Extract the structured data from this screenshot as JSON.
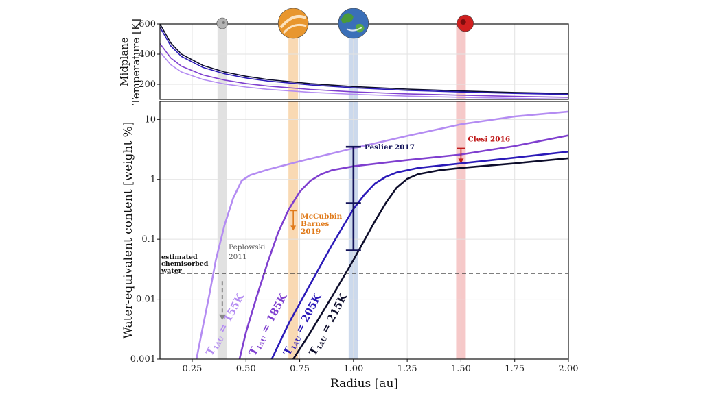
{
  "chart_data": [
    {
      "type": "line",
      "panel": "top",
      "ylabel_line1": "Midplane",
      "ylabel_line2": "Temperature [K]",
      "xlim": [
        0.1,
        2.0
      ],
      "ylim": [
        100,
        600
      ],
      "yscale": "linear",
      "yticks": [
        "200",
        "400",
        "600"
      ],
      "grid": true,
      "series": [
        {
          "color": "#0d0d2b",
          "points": [
            [
              0.1,
              600
            ],
            [
              0.15,
              475
            ],
            [
              0.2,
              400
            ],
            [
              0.3,
              325
            ],
            [
              0.4,
              282
            ],
            [
              0.5,
              253
            ],
            [
              0.6,
              232
            ],
            [
              0.8,
              204
            ],
            [
              1.0,
              185
            ],
            [
              1.25,
              168
            ],
            [
              1.5,
              156
            ],
            [
              1.75,
              146
            ],
            [
              2.0,
              139
            ]
          ]
        },
        {
          "color": "#2b1ab8",
          "points": [
            [
              0.1,
              578
            ],
            [
              0.15,
              455
            ],
            [
              0.2,
              385
            ],
            [
              0.3,
              312
            ],
            [
              0.4,
              270
            ],
            [
              0.5,
              242
            ],
            [
              0.6,
              222
            ],
            [
              0.8,
              196
            ],
            [
              1.0,
              177
            ],
            [
              1.25,
              160
            ],
            [
              1.5,
              149
            ],
            [
              1.75,
              140
            ],
            [
              2.0,
              133
            ]
          ]
        },
        {
          "color": "#7f3fcf",
          "points": [
            [
              0.1,
              470
            ],
            [
              0.15,
              375
            ],
            [
              0.2,
              320
            ],
            [
              0.3,
              262
            ],
            [
              0.4,
              228
            ],
            [
              0.5,
              205
            ],
            [
              0.6,
              188
            ],
            [
              0.8,
              166
            ],
            [
              1.0,
              150
            ],
            [
              1.25,
              137
            ],
            [
              1.5,
              128
            ],
            [
              1.75,
              120
            ],
            [
              2.0,
              114
            ]
          ]
        },
        {
          "color": "#b48cf2",
          "points": [
            [
              0.1,
              415
            ],
            [
              0.15,
              330
            ],
            [
              0.2,
              282
            ],
            [
              0.3,
              232
            ],
            [
              0.4,
              202
            ],
            [
              0.5,
              182
            ],
            [
              0.6,
              167
            ],
            [
              0.8,
              147
            ],
            [
              1.0,
              134
            ],
            [
              1.25,
              122
            ],
            [
              1.5,
              114
            ],
            [
              1.75,
              107
            ],
            [
              2.0,
              102
            ]
          ]
        }
      ],
      "planets": [
        {
          "name": "mercury-icon",
          "x": 0.39,
          "color": "#b3b3b3"
        },
        {
          "name": "venus-icon",
          "x": 0.72,
          "color": "#e8962e"
        },
        {
          "name": "earth-icon",
          "x": 1.0,
          "color": "#3a6fb8"
        },
        {
          "name": "mars-icon",
          "x": 1.52,
          "color": "#d01f1f"
        }
      ]
    },
    {
      "type": "line",
      "panel": "bottom",
      "xlabel": "Radius [au]",
      "ylabel": "Water-equivalent content [weight %]",
      "xlim": [
        0.1,
        2.0
      ],
      "ylim": [
        0.001,
        20
      ],
      "yscale": "log",
      "xticks": [
        {
          "v": 0.25,
          "label": "0.25"
        },
        {
          "v": 0.5,
          "label": "0.50"
        },
        {
          "v": 0.75,
          "label": "0.75"
        },
        {
          "v": 1.0,
          "label": "1.00"
        },
        {
          "v": 1.25,
          "label": "1.25"
        },
        {
          "v": 1.5,
          "label": "1.50"
        },
        {
          "v": 1.75,
          "label": "1.75"
        },
        {
          "v": 2.0,
          "label": "2.00"
        }
      ],
      "yticks": [
        {
          "v": 0.001,
          "label": "0.001"
        },
        {
          "v": 0.01,
          "label": "0.01"
        },
        {
          "v": 0.1,
          "label": "0.1"
        },
        {
          "v": 1,
          "label": "1"
        },
        {
          "v": 10,
          "label": "10"
        }
      ],
      "grid": true,
      "series": [
        {
          "name": "T_1AU = 155K",
          "label_prefix": "T",
          "label_sub": "1AU",
          "label_suffix": " = 155K",
          "label_at": [
            0.22,
            0.00085
          ],
          "label_rot": -62,
          "color": "#b48cf2",
          "points": [
            [
              0.27,
              0.001
            ],
            [
              0.3,
              0.0035
            ],
            [
              0.33,
              0.012
            ],
            [
              0.36,
              0.045
            ],
            [
              0.4,
              0.17
            ],
            [
              0.44,
              0.48
            ],
            [
              0.48,
              0.95
            ],
            [
              0.52,
              1.18
            ],
            [
              0.6,
              1.45
            ],
            [
              0.75,
              2.0
            ],
            [
              1.0,
              3.3
            ],
            [
              1.25,
              5.3
            ],
            [
              1.5,
              8.3
            ],
            [
              1.75,
              11.2
            ],
            [
              2.0,
              13.5
            ]
          ]
        },
        {
          "name": "T_1AU = 185K",
          "label_prefix": "T",
          "label_sub": "1AU",
          "label_suffix": " = 185K",
          "label_at": [
            0.42,
            0.00085
          ],
          "label_rot": -62,
          "color": "#7f3fcf",
          "points": [
            [
              0.47,
              0.001
            ],
            [
              0.5,
              0.0028
            ],
            [
              0.55,
              0.011
            ],
            [
              0.6,
              0.04
            ],
            [
              0.65,
              0.13
            ],
            [
              0.7,
              0.32
            ],
            [
              0.75,
              0.62
            ],
            [
              0.8,
              0.95
            ],
            [
              0.85,
              1.22
            ],
            [
              0.9,
              1.42
            ],
            [
              1.0,
              1.65
            ],
            [
              1.25,
              2.1
            ],
            [
              1.5,
              2.6
            ],
            [
              1.75,
              3.6
            ],
            [
              2.0,
              5.4
            ]
          ]
        },
        {
          "name": "T_1AU = 205K",
          "label_prefix": "T",
          "label_sub": "1AU",
          "label_suffix": " = 205K",
          "label_at": [
            0.58,
            0.00085
          ],
          "label_rot": -62,
          "color": "#2b1ab8",
          "points": [
            [
              0.62,
              0.001
            ],
            [
              0.7,
              0.004
            ],
            [
              0.8,
              0.018
            ],
            [
              0.9,
              0.08
            ],
            [
              1.0,
              0.32
            ],
            [
              1.05,
              0.55
            ],
            [
              1.1,
              0.85
            ],
            [
              1.15,
              1.1
            ],
            [
              1.2,
              1.3
            ],
            [
              1.3,
              1.55
            ],
            [
              1.5,
              1.85
            ],
            [
              1.75,
              2.3
            ],
            [
              2.0,
              2.9
            ]
          ]
        },
        {
          "name": "T_1AU = 215K",
          "label_prefix": "T",
          "label_sub": "1AU",
          "label_suffix": " = 215K",
          "label_at": [
            0.7,
            0.00085
          ],
          "label_rot": -62,
          "color": "#0d0d2b",
          "points": [
            [
              0.72,
              0.001
            ],
            [
              0.8,
              0.0028
            ],
            [
              0.9,
              0.011
            ],
            [
              1.0,
              0.045
            ],
            [
              1.1,
              0.2
            ],
            [
              1.15,
              0.4
            ],
            [
              1.2,
              0.72
            ],
            [
              1.25,
              1.02
            ],
            [
              1.3,
              1.22
            ],
            [
              1.4,
              1.42
            ],
            [
              1.5,
              1.55
            ],
            [
              1.75,
              1.85
            ],
            [
              2.0,
              2.25
            ]
          ]
        }
      ],
      "hline": {
        "y": 0.027,
        "color": "#333333"
      },
      "bands": [
        {
          "x": 0.39,
          "color": "#b3b3b3"
        },
        {
          "x": 0.72,
          "color": "#f0a040"
        },
        {
          "x": 1.0,
          "color": "#7f9fd0"
        },
        {
          "x": 1.5,
          "color": "#e87878"
        }
      ],
      "annotations": {
        "chemisorbed": {
          "lines": [
            "estimated",
            "chemisorbed",
            "water"
          ],
          "color": "#111111"
        },
        "peplowski": {
          "lines": [
            "Peplowski",
            "2011"
          ],
          "color": "#555555",
          "arrow_from": 0.02,
          "arrow_to": 0.0045,
          "arrow_x": 0.39
        },
        "mccubbin": {
          "lines": [
            "McCubbin",
            "Barnes",
            "2019"
          ],
          "color": "#e07a1a",
          "arrow_from": 0.3,
          "arrow_to": 0.14,
          "arrow_x": 0.72
        },
        "peslier": {
          "text": "Peslier 2017",
          "color": "#14145a",
          "bar_x": 1.0,
          "y_top": 3.5,
          "y_mid": 0.4,
          "y_bot": 0.065
        },
        "clesi": {
          "text": "Clesi 2016",
          "color": "#c01a1a",
          "arrow_x": 1.5,
          "arrow_from": 3.3,
          "arrow_to": 1.85
        }
      }
    }
  ]
}
